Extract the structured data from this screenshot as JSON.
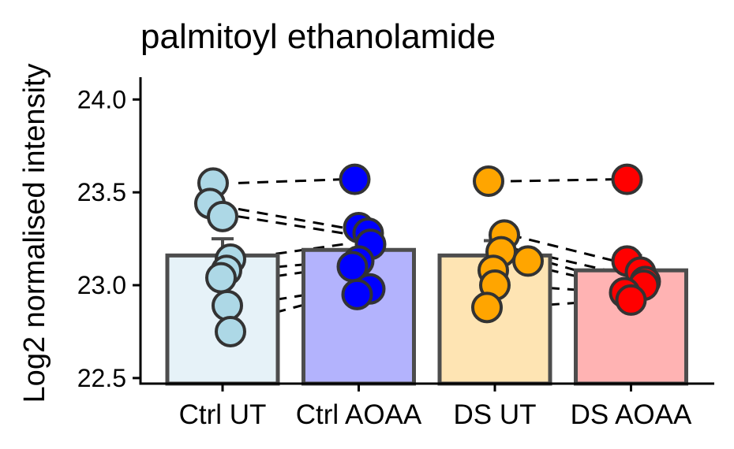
{
  "chart_data": {
    "type": "bar",
    "title": "palmitoyl ethanolamide",
    "xlabel": "",
    "ylabel": "Log2 normalised intensity",
    "ylim": [
      22.47,
      24.12
    ],
    "yticks": [
      "22.5",
      "23.0",
      "23.5",
      "24.0"
    ],
    "grid": false,
    "legend": "none",
    "categories": [
      "Ctrl UT",
      "Ctrl AOAA",
      "DS UT",
      "DS AOAA"
    ],
    "values": [
      23.16,
      23.19,
      23.16,
      23.08
    ],
    "error_upper": [
      23.25,
      23.27,
      23.24,
      23.16
    ],
    "bar_fill": [
      "#e6f2f8",
      "#b3b3fd",
      "#fee4b3",
      "#ffb3b3"
    ],
    "point_fill": [
      "#add8e6",
      "#0000ff",
      "#ffa500",
      "#ff0000"
    ],
    "bar_edge": "#4d4d4d",
    "points": [
      [
        {
          "x": -0.12,
          "y": 23.55
        },
        {
          "x": -0.16,
          "y": 23.44
        },
        {
          "x": 0.0,
          "y": 23.37
        },
        {
          "x": 0.1,
          "y": 23.14
        },
        {
          "x": 0.05,
          "y": 23.08
        },
        {
          "x": -0.02,
          "y": 23.04
        },
        {
          "x": 0.06,
          "y": 22.89
        },
        {
          "x": 0.1,
          "y": 22.75
        }
      ],
      [
        {
          "x": -0.05,
          "y": 23.57
        },
        {
          "x": 0.0,
          "y": 23.31
        },
        {
          "x": 0.12,
          "y": 23.28
        },
        {
          "x": 0.15,
          "y": 23.22
        },
        {
          "x": 0.0,
          "y": 23.13
        },
        {
          "x": -0.08,
          "y": 23.1
        },
        {
          "x": 0.14,
          "y": 22.98
        },
        {
          "x": -0.02,
          "y": 22.95
        }
      ],
      [
        {
          "x": -0.08,
          "y": 23.56
        },
        {
          "x": 0.12,
          "y": 23.27
        },
        {
          "x": 0.08,
          "y": 23.18
        },
        {
          "x": 0.42,
          "y": 23.13
        },
        {
          "x": -0.02,
          "y": 23.08
        },
        {
          "x": 0.0,
          "y": 23.0
        },
        {
          "x": -0.1,
          "y": 22.88
        }
      ],
      [
        {
          "x": -0.05,
          "y": 23.57
        },
        {
          "x": -0.05,
          "y": 23.13
        },
        {
          "x": 0.12,
          "y": 23.07
        },
        {
          "x": 0.18,
          "y": 23.02
        },
        {
          "x": 0.16,
          "y": 23.0
        },
        {
          "x": -0.08,
          "y": 22.96
        },
        {
          "x": 0.0,
          "y": 22.92
        }
      ]
    ],
    "pairs": [
      [
        [
          0,
          23.55
        ],
        [
          1,
          23.57
        ]
      ],
      [
        [
          0,
          23.41
        ],
        [
          1,
          23.31
        ]
      ],
      [
        [
          0,
          23.37
        ],
        [
          1,
          23.28
        ]
      ],
      [
        [
          0,
          23.14
        ],
        [
          1,
          23.22
        ]
      ],
      [
        [
          0,
          23.08
        ],
        [
          1,
          23.13
        ]
      ],
      [
        [
          0,
          23.02
        ],
        [
          1,
          23.1
        ]
      ],
      [
        [
          0,
          22.89
        ],
        [
          1,
          22.98
        ]
      ],
      [
        [
          0,
          22.8
        ],
        [
          1,
          22.95
        ]
      ],
      [
        [
          2,
          23.56
        ],
        [
          3,
          23.57
        ]
      ],
      [
        [
          2,
          23.27
        ],
        [
          3,
          23.13
        ]
      ],
      [
        [
          2,
          23.2
        ],
        [
          3,
          23.07
        ]
      ],
      [
        [
          2,
          23.18
        ],
        [
          3,
          23.02
        ]
      ],
      [
        [
          2,
          23.13
        ],
        [
          3,
          23.0
        ]
      ],
      [
        [
          2,
          23.0
        ],
        [
          3,
          22.96
        ]
      ],
      [
        [
          2,
          22.88
        ],
        [
          3,
          22.92
        ]
      ]
    ]
  }
}
